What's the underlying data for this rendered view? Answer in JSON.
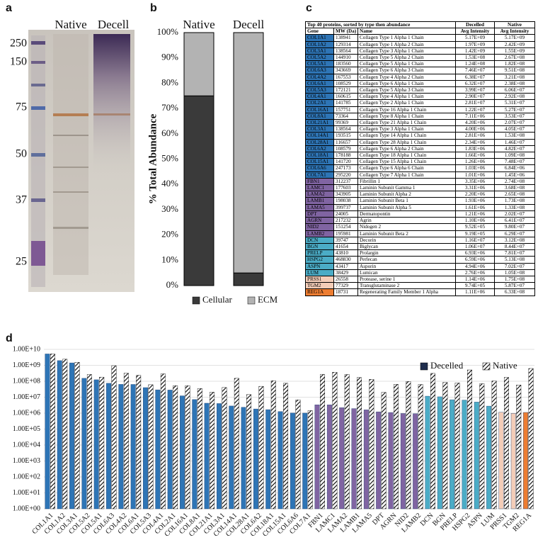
{
  "panel_labels": [
    "a",
    "b",
    "c",
    "d"
  ],
  "gel": {
    "lanes": [
      "Native",
      "Decell"
    ],
    "markers": [
      "250",
      "150",
      "75",
      "50",
      "37",
      "25"
    ]
  },
  "chart_data": [
    {
      "type": "bar",
      "stacked": true,
      "ylabel": "% Total Abundance",
      "categories": [
        "Native",
        "Decell"
      ],
      "series": [
        {
          "name": "Cellular",
          "color": "#3a3a3a",
          "values": [
            75,
            5
          ]
        },
        {
          "name": "ECM",
          "color": "#b3b3b3",
          "values": [
            25,
            95
          ]
        }
      ],
      "ylim": [
        0,
        100
      ],
      "yticks": [
        {
          "value": 0,
          "label": "0%"
        },
        {
          "value": 10,
          "label": "10%"
        },
        {
          "value": 20,
          "label": "20%"
        },
        {
          "value": 30,
          "label": "30%"
        },
        {
          "value": 40,
          "label": "40%"
        },
        {
          "value": 50,
          "label": "50%"
        },
        {
          "value": 60,
          "label": "60%"
        },
        {
          "value": 70,
          "label": "70%"
        },
        {
          "value": 80,
          "label": "80%"
        },
        {
          "value": 90,
          "label": "90%"
        },
        {
          "value": 100,
          "label": "100%"
        }
      ],
      "grid": false,
      "legend": "bottom"
    },
    {
      "type": "bar",
      "log_scale": true,
      "categories": [
        "COL1A1",
        "COL1A2",
        "COL3A1",
        "COL5A2",
        "COL5A1",
        "COL6A3",
        "COL4A2",
        "COL6A1",
        "COL5A3",
        "COL4A1",
        "COL2A1",
        "COL16A1",
        "COL8A1",
        "COL21A1",
        "COL3A1",
        "COL14A1",
        "COL28A1",
        "COL6A2",
        "COL18A1",
        "COL15A1",
        "COL6A6",
        "COL7A1",
        "FBN1",
        "LAMC1",
        "LAMA2",
        "LAMB1",
        "LAMA5",
        "DPT",
        "AGRN",
        "NID2",
        "LAMB2",
        "DCN",
        "BGN",
        "PRELP",
        "HSPG2",
        "ASPN",
        "LUM",
        "PRSS1",
        "TGM2",
        "REG1A"
      ],
      "series": [
        {
          "name": "Decelled",
          "color": "#1f2d4d",
          "colors": [
            "#2e75b6",
            "#2e75b6",
            "#2e75b6",
            "#2e75b6",
            "#2e75b6",
            "#2e75b6",
            "#2e75b6",
            "#2e75b6",
            "#2e75b6",
            "#2e75b6",
            "#2e75b6",
            "#2e75b6",
            "#2e75b6",
            "#2e75b6",
            "#2e75b6",
            "#2e75b6",
            "#2e75b6",
            "#2e75b6",
            "#2e75b6",
            "#2e75b6",
            "#2e75b6",
            "#2e75b6",
            "#8064a2",
            "#8064a2",
            "#8064a2",
            "#8064a2",
            "#8064a2",
            "#8064a2",
            "#8064a2",
            "#8064a2",
            "#8064a2",
            "#4bacc6",
            "#4bacc6",
            "#4bacc6",
            "#4bacc6",
            "#4bacc6",
            "#4bacc6",
            "#f4cdb8",
            "#f4cdb8",
            "#ed7d31"
          ],
          "values": [
            5170000000.0,
            1970000000.0,
            1420000000.0,
            153000000.0,
            124000000.0,
            74600000.0,
            63800000.0,
            63200000.0,
            39900000.0,
            29000000.0,
            28100000.0,
            12200000.0,
            7110000.0,
            4200000.0,
            4000000.0,
            2810000.0,
            2340000.0,
            1830000.0,
            1660000.0,
            1260000.0,
            1030000.0,
            1010000.0,
            3350000.0,
            3310000.0,
            2200000.0,
            1930000.0,
            1610000.0,
            1210000.0,
            1100000.0,
            952000.0,
            919000.0,
            11600000.0,
            10600000.0,
            6930000.0,
            6590000.0,
            4940000.0,
            2760000.0,
            1140000.0,
            974000.0,
            1110000.0
          ]
        },
        {
          "name": "Native",
          "color": "#000000",
          "hatch": true,
          "values": [
            5170000000.0,
            2420000000.0,
            1550000000.0,
            267000000.0,
            182000000.0,
            951000000.0,
            321000000.0,
            238000000.0,
            60600000.0,
            292000000.0,
            53100000.0,
            52700000.0,
            35300000.0,
            20700000.0,
            40500000.0,
            153000000.0,
            14600000.0,
            48200000.0,
            109000000.0,
            74800000.0,
            6840000.0,
            1450000.0,
            274000000.0,
            368000000.0,
            265000000.0,
            173000000.0,
            133000000.0,
            20200000.0,
            64100000.0,
            98000000.0,
            62900000.0,
            312000000.0,
            84400000.0,
            78100000.0,
            513000000.0,
            70200000.0,
            105000000.0,
            175000000.0,
            58700000.0,
            633000000.0
          ]
        }
      ],
      "ylim": [
        1,
        10000000000
      ],
      "yticks": [
        {
          "value": 1,
          "label": "1.00E+00"
        },
        {
          "value": 10,
          "label": "1.00E+01"
        },
        {
          "value": 100,
          "label": "1.00E+02"
        },
        {
          "value": 1000,
          "label": "1.00E+03"
        },
        {
          "value": 10000,
          "label": "1.00E+04"
        },
        {
          "value": 100000,
          "label": "1.00E+05"
        },
        {
          "value": 1000000,
          "label": "1.00E+06"
        },
        {
          "value": 10000000,
          "label": "1.00E+07"
        },
        {
          "value": 100000000,
          "label": "1.00E+08"
        },
        {
          "value": 1000000000,
          "label": "1.00E+09"
        },
        {
          "value": 10000000000,
          "label": "1.00E+10"
        }
      ],
      "grid": true,
      "legend": "top-right"
    }
  ],
  "table": {
    "title": "Top 40 proteins, sorted by type then abundance",
    "group_headers": [
      "Decelled",
      "Native"
    ],
    "columns": [
      "Gene",
      "MW (Da)",
      "Name",
      "Avg Intensity",
      "Avg Intensity"
    ],
    "rows": [
      [
        "COL1A1",
        138941,
        "Collagen Type 1 Alpha 1 Chain",
        "5.17E+09",
        "5.17E+09"
      ],
      [
        "COL1A2",
        129314,
        "Collagen Type 1 Alpha 2 Chain",
        "1.97E+09",
        "2.42E+09"
      ],
      [
        "COL3A1",
        138564,
        "Collagen Type 3 Alpha 1 Chain",
        "1.42E+09",
        "1.55E+09"
      ],
      [
        "COL5A2",
        144910,
        "Collagen Type 5 Alpha 2 Chain",
        "1.53E+08",
        "2.67E+08"
      ],
      [
        "COL5A1",
        183560,
        "Collagen Type 5 Alpha 1 Chain",
        "1.24E+08",
        "1.82E+08"
      ],
      [
        "COL6A3",
        343669,
        "Collagen Type 6 Alpha 3 Chain",
        "7.46E+07",
        "9.51E+08"
      ],
      [
        "COL4A2",
        167553,
        "Collagen Type 4 Alpha 2 Chain",
        "6.38E+07",
        "3.21E+08"
      ],
      [
        "COL6A1",
        108529,
        "Collagen Type 6 Alpha 1 Chain",
        "6.32E+07",
        "2.38E+08"
      ],
      [
        "COL5A3",
        172121,
        "Collagen Type 5 Alpha 3 Chain",
        "3.99E+07",
        "6.06E+07"
      ],
      [
        "COL4A1",
        160615,
        "Collagen Type 4 Alpha 1 Chain",
        "2.90E+07",
        "2.92E+08"
      ],
      [
        "COL2A1",
        141785,
        "Collagen Type 2 Alpha 1 Chain",
        "2.81E+07",
        "5.31E+07"
      ],
      [
        "COL16A1",
        157751,
        "Collagen Type 16 Alpha 1 Chain",
        "1.22E+07",
        "5.27E+07"
      ],
      [
        "COL8A1",
        73364,
        "Collagen Type 8 Alpha 1 Chain",
        "7.11E+06",
        "3.53E+07"
      ],
      [
        "COL21A1",
        99369,
        "Collagen Type 21 Alpha 1 Chain",
        "4.20E+06",
        "2.07E+07"
      ],
      [
        "COL3A1",
        138564,
        "Collagen Type 3 Alpha 1 Chain",
        "4.00E+06",
        "4.05E+07"
      ],
      [
        "COL14A1",
        193515,
        "Collagen Type 14 Alpha 1 Chain",
        "2.81E+06",
        "1.53E+08"
      ],
      [
        "COL28A1",
        116657,
        "Collagen Type 28 Alpha 1 Chain",
        "2.34E+06",
        "1.46E+07"
      ],
      [
        "COL6A2",
        108579,
        "Collagen Type 6 Alpha 2 Chain",
        "1.83E+06",
        "4.82E+07"
      ],
      [
        "COL18A1",
        178188,
        "Collagen Type 18 Alpha 1 Chain",
        "1.66E+06",
        "1.09E+08"
      ],
      [
        "COL15A1",
        141720,
        "Collagen Type 15 Alpha 1 Chain",
        "1.26E+06",
        "7.48E+07"
      ],
      [
        "COL6A6",
        247173,
        "Collagen Type 6 Alpha 6 Chain",
        "1.03E+06",
        "6.84E+06"
      ],
      [
        "COL7A1",
        295220,
        "Collagen Type 7 Alpha 1 Chain",
        "1.01E+06",
        "1.45E+06"
      ],
      [
        "FBN1",
        312237,
        "Fibrillin 1",
        "3.35E+06",
        "2.74E+08"
      ],
      [
        "LAMC1",
        177603,
        "Laminin Subunit Gamma 1",
        "3.31E+06",
        "3.68E+08"
      ],
      [
        "LAMA2",
        343905,
        "Laminin Subunit Alpha 2",
        "2.20E+06",
        "2.65E+08"
      ],
      [
        "LAMB1",
        198038,
        "Laminin Subunit Beta 1",
        "1.93E+06",
        "1.73E+08"
      ],
      [
        "LAMA5",
        399737,
        "Laminin Subunit Alpha 5",
        "1.61E+06",
        "1.33E+08"
      ],
      [
        "DPT",
        24005,
        "Dermatopontin",
        "1.21E+06",
        "2.02E+07"
      ],
      [
        "AGRN",
        217232,
        "Agrin",
        "1.10E+06",
        "6.41E+07"
      ],
      [
        "NID2",
        151254,
        "Nidogen 2",
        "9.52E+05",
        "9.80E+07"
      ],
      [
        "LAMB2",
        195981,
        "Laminin Subunit Beta 2",
        "9.19E+05",
        "6.29E+07"
      ],
      [
        "DCN",
        39747,
        "Decorin",
        "1.16E+07",
        "3.12E+08"
      ],
      [
        "BGN",
        41654,
        "Biglycan",
        "1.06E+07",
        "8.44E+07"
      ],
      [
        "PRELP",
        43810,
        "Prolargin",
        "6.93E+06",
        "7.81E+07"
      ],
      [
        "HSPG2",
        468830,
        "Perlecan",
        "6.59E+06",
        "5.13E+08"
      ],
      [
        "ASPN",
        43417,
        "Asporin",
        "4.94E+06",
        "7.02E+07"
      ],
      [
        "LUM",
        38429,
        "Lumican",
        "2.76E+06",
        "1.05E+08"
      ],
      [
        "PRSS1",
        26558,
        "Protease, serine 1",
        "1.14E+06",
        "1.75E+08"
      ],
      [
        "TGM2",
        77329,
        "Transglutaminase 2",
        "9.74E+05",
        "5.87E+07"
      ],
      [
        "REG1A",
        18731,
        "Regenerating Family Member 1 Alpha",
        "1.11E+06",
        "6.33E+08"
      ]
    ]
  }
}
